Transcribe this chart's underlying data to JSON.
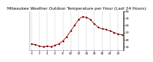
{
  "title": "Milwaukee Weather Outdoor Temperature per Hour (Last 24 Hours)",
  "hours": [
    0,
    1,
    2,
    3,
    4,
    5,
    6,
    7,
    8,
    9,
    10,
    11,
    12,
    13,
    14,
    15,
    16,
    17,
    18,
    19,
    20,
    21,
    22,
    23
  ],
  "temps": [
    34,
    33,
    31,
    30,
    31,
    30,
    32,
    34,
    38,
    44,
    52,
    60,
    68,
    72,
    71,
    68,
    62,
    57,
    55,
    54,
    52,
    50,
    48,
    47
  ],
  "line_color": "#dd0000",
  "marker_color": "#000000",
  "bg_color": "#ffffff",
  "grid_color": "#999999",
  "ylim": [
    25,
    80
  ],
  "yticks": [
    30,
    40,
    50,
    60,
    70,
    80
  ],
  "title_fontsize": 4.2,
  "tick_fontsize": 3.2
}
